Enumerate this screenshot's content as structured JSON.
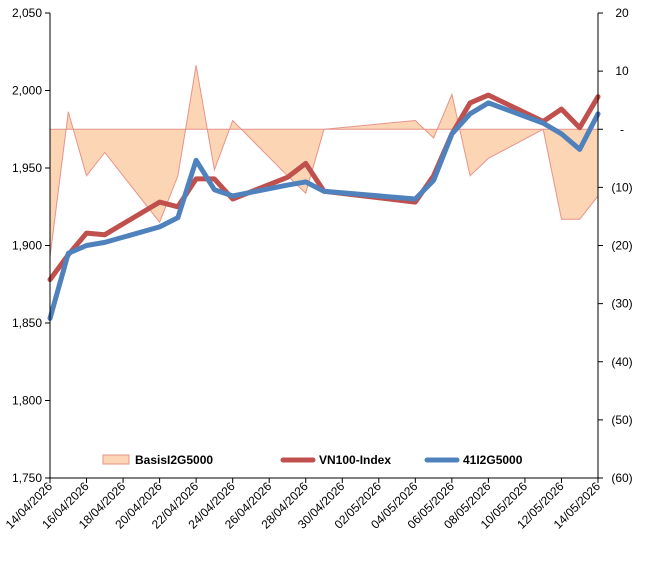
{
  "chart_data": {
    "type": "line",
    "x": [
      "14/04/2026",
      "15/04/2026",
      "16/04/2026",
      "17/04/2026",
      "20/04/2026",
      "21/04/2026",
      "22/04/2026",
      "23/04/2026",
      "24/04/2026",
      "27/04/2026",
      "28/04/2026",
      "29/04/2026",
      "04/05/2026",
      "05/05/2026",
      "06/05/2026",
      "07/05/2026",
      "08/05/2026",
      "11/05/2026",
      "12/05/2026",
      "13/05/2026",
      "14/05/2026"
    ],
    "x_tick_labels": [
      "14/04/2026",
      "16/04/2026",
      "18/04/2026",
      "20/04/2026",
      "22/04/2026",
      "24/04/2026",
      "26/04/2026",
      "28/04/2026",
      "30/04/2026",
      "02/05/2026",
      "04/05/2026",
      "06/05/2026",
      "08/05/2026",
      "10/05/2026",
      "12/05/2026",
      "14/05/2026"
    ],
    "y_left": {
      "min": 1750,
      "max": 2050,
      "ticks": [
        "1,750",
        "1,800",
        "1,850",
        "1,900",
        "1,950",
        "2,000",
        "2,050"
      ]
    },
    "y_right": {
      "min": -60,
      "max": 20,
      "ticks": [
        "(60)",
        "(50)",
        "(40)",
        "(30)",
        "(20)",
        "(10)",
        "-",
        "10",
        "20"
      ]
    },
    "series": [
      {
        "name": "BasisI2G5000",
        "kind": "area",
        "axis": "right",
        "color": "#fcd5b4",
        "edge_color": "#e6938a",
        "points": [
          {
            "x": "14/04/2026",
            "y": -22
          },
          {
            "x": "14/04/2026",
            "y": -22
          },
          {
            "x": "15/04/2026",
            "y": 3
          },
          {
            "x": "16/04/2026",
            "y": -8
          },
          {
            "x": "17/04/2026",
            "y": -4
          },
          {
            "x": "20/04/2026",
            "y": -16
          },
          {
            "x": "21/04/2026",
            "y": -8
          },
          {
            "x": "22/04/2026",
            "y": 11
          },
          {
            "x": "23/04/2026",
            "y": -7
          },
          {
            "x": "24/04/2026",
            "y": 1.5
          },
          {
            "x": "27/04/2026",
            "y": -8
          },
          {
            "x": "28/04/2026",
            "y": -11
          },
          {
            "x": "29/04/2026",
            "y": 0
          },
          {
            "x": "04/05/2026",
            "y": 1.5
          },
          {
            "x": "05/05/2026",
            "y": -1.5
          },
          {
            "x": "06/05/2026",
            "y": 6
          },
          {
            "x": "07/05/2026",
            "y": -8
          },
          {
            "x": "08/05/2026",
            "y": -5
          },
          {
            "x": "11/05/2026",
            "y": 0
          },
          {
            "x": "12/05/2026",
            "y": -15.5
          },
          {
            "x": "13/05/2026",
            "y": -15.5
          },
          {
            "x": "14/05/2026",
            "y": -11.5
          }
        ]
      },
      {
        "name": "VN100-Index",
        "kind": "line",
        "axis": "left",
        "color": "#c0504d",
        "values": [
          1878,
          1894,
          1908,
          1907,
          1928,
          1925,
          1943,
          1943,
          1930,
          1944,
          1953,
          1935,
          1928,
          1945,
          1972,
          1992,
          1997,
          1980,
          1988,
          1976,
          1996
        ]
      },
      {
        "name": "41I2G5000",
        "kind": "line",
        "axis": "left",
        "color": "#4f81bd",
        "values": [
          1853,
          1895,
          1900,
          1902,
          1912,
          1918,
          1955,
          1936,
          1932,
          1939,
          1941,
          1935,
          1930,
          1942,
          1972,
          1985,
          1992,
          1979,
          1972,
          1962,
          1985
        ]
      }
    ],
    "legend_position": "bottom-inside",
    "grid": false
  }
}
